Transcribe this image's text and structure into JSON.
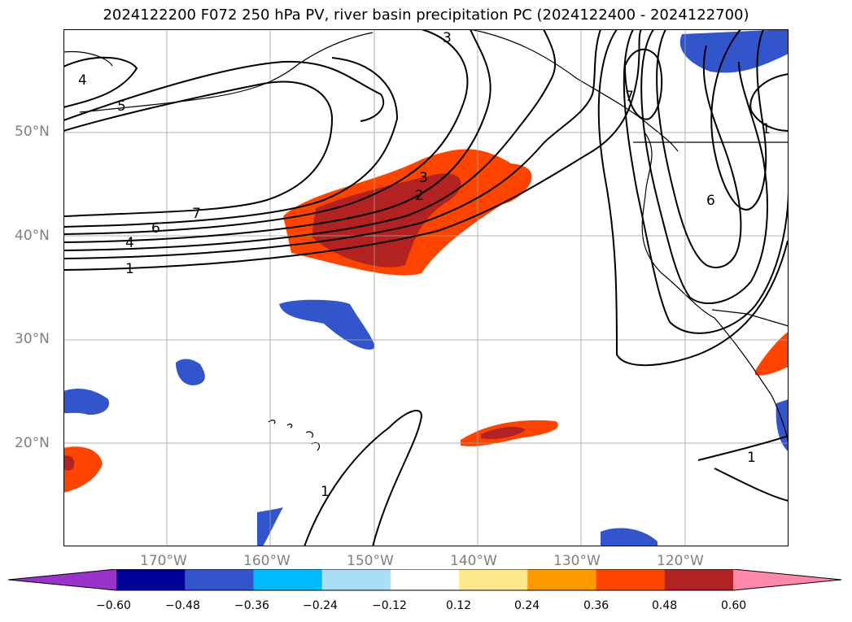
{
  "title": "2024122200 F072 250 hPa PV, river basin precipitation PC (2024122400 - 2024122700)",
  "lat_labels": [
    "50°N",
    "40°N",
    "30°N",
    "20°N"
  ],
  "lon_labels": [
    "170°W",
    "160°W",
    "150°W",
    "140°W",
    "130°W",
    "120°W"
  ],
  "colorbar": {
    "ticks": [
      "−0.60",
      "−0.48",
      "−0.36",
      "−0.24",
      "−0.12",
      "0.12",
      "0.24",
      "0.36",
      "0.48",
      "0.60"
    ],
    "colors": [
      "#9933cc",
      "#000099",
      "#3355cc",
      "#00bbff",
      "#aaddf6",
      "#ffffff",
      "#ffe88a",
      "#ff9900",
      "#ff4400",
      "#b22222",
      "#ff88aa"
    ]
  },
  "contour_labels": [
    "4",
    "5",
    "7",
    "6",
    "4",
    "1",
    "3",
    "2",
    "3",
    "7",
    "6",
    "1",
    "1",
    "1"
  ],
  "colors": {
    "pv_contour": "#000000",
    "coastline": "#000000",
    "grid": "#a0a0a0"
  }
}
